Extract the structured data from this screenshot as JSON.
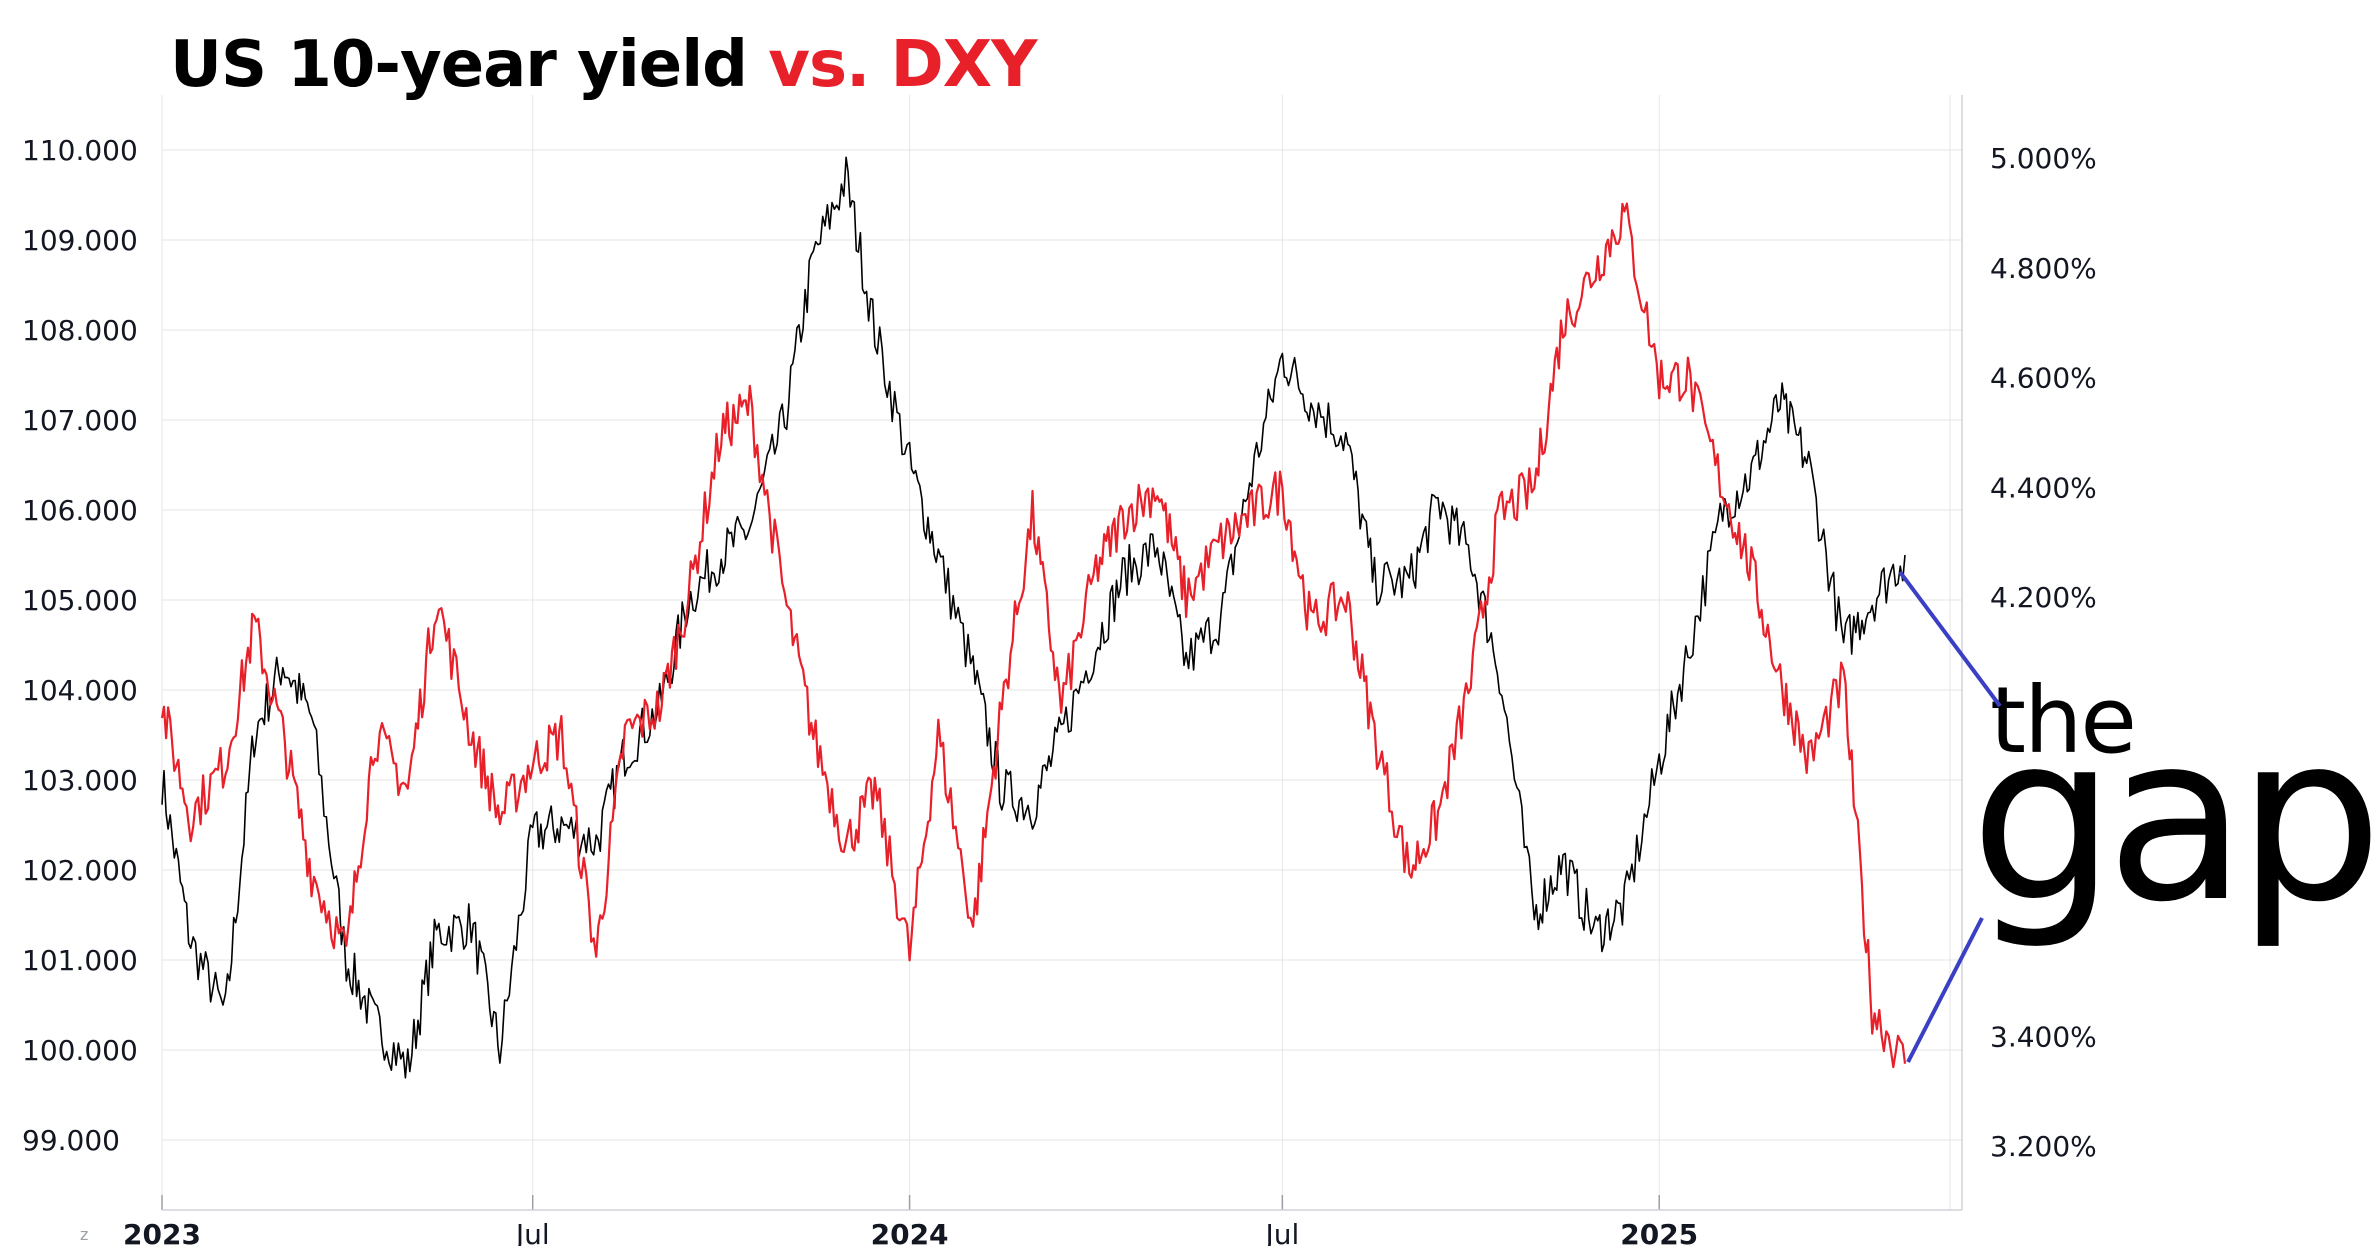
{
  "title": {
    "part1": "US 10-year yield",
    "part2": "vs. DXY"
  },
  "colors": {
    "yield": "#000000",
    "dxy": "#e8202a",
    "grid": "#e6e6e6",
    "connector": "#3a3fc4"
  },
  "logo": {
    "line1": "the",
    "line2": "gap"
  },
  "watermark": "z",
  "chart_data": {
    "type": "line",
    "left_axis": {
      "label": "",
      "ticks": [
        "110.000",
        "109.000",
        "108.000",
        "107.000",
        "106.000",
        "105.000",
        "104.000",
        "103.000",
        "102.000",
        "101.000",
        "100.000",
        "99.000"
      ],
      "range": [
        98.3,
        110.8
      ]
    },
    "right_axis": {
      "label": "",
      "ticks": [
        "5.000%",
        "4.800%",
        "4.600%",
        "4.400%",
        "4.200%",
        "3.400%",
        "3.200%"
      ],
      "range": [
        3.05,
        5.15
      ]
    },
    "x_ticks": [
      {
        "label": "2023",
        "bold": true
      },
      {
        "label": "Jul",
        "bold": false
      },
      {
        "label": "2024",
        "bold": true
      },
      {
        "label": "Jul",
        "bold": false
      },
      {
        "label": "2025",
        "bold": true
      }
    ],
    "series": [
      {
        "name": "",
        "axis": "left",
        "color": "#000000",
        "x": [
          "2023-01-01",
          "2023-01-15",
          "2023-02-01",
          "2023-02-15",
          "2023-03-01",
          "2023-03-15",
          "2023-04-01",
          "2023-04-15",
          "2023-05-01",
          "2023-05-15",
          "2023-06-01",
          "2023-06-15",
          "2023-07-01",
          "2023-07-15",
          "2023-08-01",
          "2023-08-15",
          "2023-09-01",
          "2023-09-15",
          "2023-10-01",
          "2023-10-15",
          "2023-11-01",
          "2023-11-15",
          "2023-12-01",
          "2023-12-15",
          "2024-01-01",
          "2024-01-15",
          "2024-02-01",
          "2024-02-15",
          "2024-03-01",
          "2024-03-15",
          "2024-04-01",
          "2024-04-15",
          "2024-05-01",
          "2024-05-15",
          "2024-06-01",
          "2024-06-15",
          "2024-07-01",
          "2024-07-15",
          "2024-08-01",
          "2024-08-15",
          "2024-09-01",
          "2024-09-15",
          "2024-10-01",
          "2024-10-15",
          "2024-11-01",
          "2024-11-15",
          "2024-12-01",
          "2024-12-15",
          "2025-01-01",
          "2025-01-15",
          "2025-02-01",
          "2025-02-15",
          "2025-03-01",
          "2025-03-15",
          "2025-04-01",
          "2025-04-15",
          "2025-05-01"
        ],
        "values": [
          103.0,
          101.2,
          100.4,
          103.5,
          104.3,
          103.7,
          101.0,
          100.3,
          99.8,
          101.3,
          101.4,
          100.0,
          102.4,
          102.5,
          102.3,
          103.3,
          103.8,
          105.0,
          105.5,
          105.8,
          107.0,
          108.8,
          109.7,
          108.0,
          106.5,
          105.5,
          104.2,
          102.9,
          102.7,
          103.5,
          104.5,
          105.3,
          105.6,
          104.3,
          104.8,
          106.3,
          107.7,
          107.2,
          106.8,
          105.2,
          105.2,
          106.1,
          105.5,
          104.2,
          101.5,
          102.1,
          101.3,
          101.6,
          103.2,
          104.4,
          106.0,
          106.4,
          107.2,
          106.5,
          104.5,
          105.0,
          105.5
        ]
      },
      {
        "name": "",
        "axis": "right",
        "color": "#e8202a",
        "x": [
          "2023-01-01",
          "2023-01-15",
          "2023-02-01",
          "2023-02-15",
          "2023-03-01",
          "2023-03-15",
          "2023-04-01",
          "2023-04-15",
          "2023-05-01",
          "2023-05-15",
          "2023-06-01",
          "2023-06-15",
          "2023-07-01",
          "2023-07-15",
          "2023-08-01",
          "2023-08-15",
          "2023-09-01",
          "2023-09-15",
          "2023-10-01",
          "2023-10-15",
          "2023-11-01",
          "2023-11-15",
          "2023-12-01",
          "2023-12-15",
          "2024-01-01",
          "2024-01-15",
          "2024-02-01",
          "2024-02-15",
          "2024-03-01",
          "2024-03-15",
          "2024-04-01",
          "2024-04-15",
          "2024-05-01",
          "2024-05-15",
          "2024-06-01",
          "2024-06-15",
          "2024-07-01",
          "2024-07-15",
          "2024-08-01",
          "2024-08-15",
          "2024-09-01",
          "2024-09-15",
          "2024-10-01",
          "2024-10-15",
          "2024-11-01",
          "2024-11-15",
          "2024-12-01",
          "2024-12-15",
          "2025-01-01",
          "2025-01-15",
          "2025-02-01",
          "2025-02-15",
          "2025-03-01",
          "2025-03-15",
          "2025-04-01",
          "2025-04-15",
          "2025-05-01"
        ],
        "values": [
          4.0,
          3.8,
          3.9,
          4.15,
          3.95,
          3.7,
          3.55,
          3.95,
          3.85,
          4.2,
          3.95,
          3.8,
          3.9,
          3.95,
          3.55,
          3.95,
          4.0,
          4.2,
          4.5,
          4.55,
          4.2,
          3.95,
          3.75,
          3.85,
          3.55,
          3.95,
          3.6,
          4.0,
          4.35,
          4.0,
          4.25,
          4.35,
          4.4,
          4.2,
          4.3,
          4.35,
          4.4,
          4.15,
          4.2,
          3.95,
          3.7,
          3.8,
          4.05,
          4.35,
          4.4,
          4.7,
          4.8,
          4.9,
          4.6,
          4.6,
          4.4,
          4.25,
          4.05,
          3.9,
          4.05,
          3.45,
          3.35
        ]
      }
    ]
  }
}
